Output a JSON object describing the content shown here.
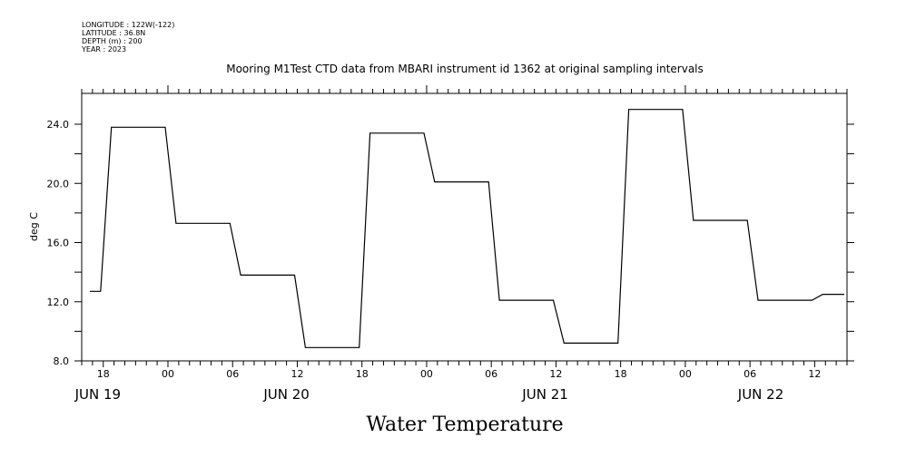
{
  "header": {
    "lines": [
      "LONGITUDE : 122W(-122)",
      "LATITUDE : 36.8N",
      "DEPTH (m) : 200",
      "YEAR : 2023"
    ]
  },
  "chart_data": {
    "type": "line",
    "title": "Mooring M1Test CTD data from MBARI instrument id 1362 at original sampling intervals",
    "xlabel": "Water Temperature",
    "ylabel": "deg C",
    "x_units": "hours relative to JUN 20 00:00",
    "xlim": [
      -8,
      63
    ],
    "ylim": [
      8,
      25.6
    ],
    "yticks": [
      8,
      10,
      12,
      14,
      16,
      18,
      20,
      22,
      24
    ],
    "ytick_labels": [
      "8.0",
      "12.0",
      "16.0",
      "20.0",
      "24.0"
    ],
    "ytick_label_values": [
      8,
      12,
      16,
      20,
      24
    ],
    "xtick_labels": [
      {
        "hour": -6,
        "label": "18"
      },
      {
        "hour": 0,
        "label": "00"
      },
      {
        "hour": 6,
        "label": "06"
      },
      {
        "hour": 12,
        "label": "12"
      },
      {
        "hour": 18,
        "label": "18"
      },
      {
        "hour": 24,
        "label": "00"
      },
      {
        "hour": 30,
        "label": "06"
      },
      {
        "hour": 36,
        "label": "12"
      },
      {
        "hour": 42,
        "label": "18"
      },
      {
        "hour": 48,
        "label": "00"
      },
      {
        "hour": 54,
        "label": "06"
      },
      {
        "hour": 60,
        "label": "12"
      }
    ],
    "date_labels": [
      {
        "hour": -6.5,
        "label": "JUN 19"
      },
      {
        "hour": 11,
        "label": "JUN 20"
      },
      {
        "hour": 35,
        "label": "JUN 21"
      },
      {
        "hour": 55,
        "label": "JUN 22"
      }
    ],
    "grid": false,
    "series": [
      {
        "name": "Water Temperature",
        "x": [
          -7.25,
          -6.25,
          -5.25,
          -0.25,
          0.75,
          5.75,
          6.75,
          11.75,
          12.75,
          17.75,
          18.75,
          23.75,
          24.75,
          29.75,
          30.75,
          35.75,
          36.75,
          41.75,
          42.75,
          47.75,
          48.75,
          53.75,
          54.75,
          59.75,
          60.75,
          62.75
        ],
        "y": [
          12.7,
          12.7,
          23.8,
          23.8,
          17.3,
          17.3,
          13.8,
          13.8,
          8.9,
          8.9,
          23.4,
          23.4,
          20.1,
          20.1,
          12.1,
          12.1,
          9.2,
          9.2,
          25.0,
          25.0,
          17.5,
          17.5,
          12.1,
          12.1,
          12.5,
          12.5
        ]
      }
    ]
  }
}
